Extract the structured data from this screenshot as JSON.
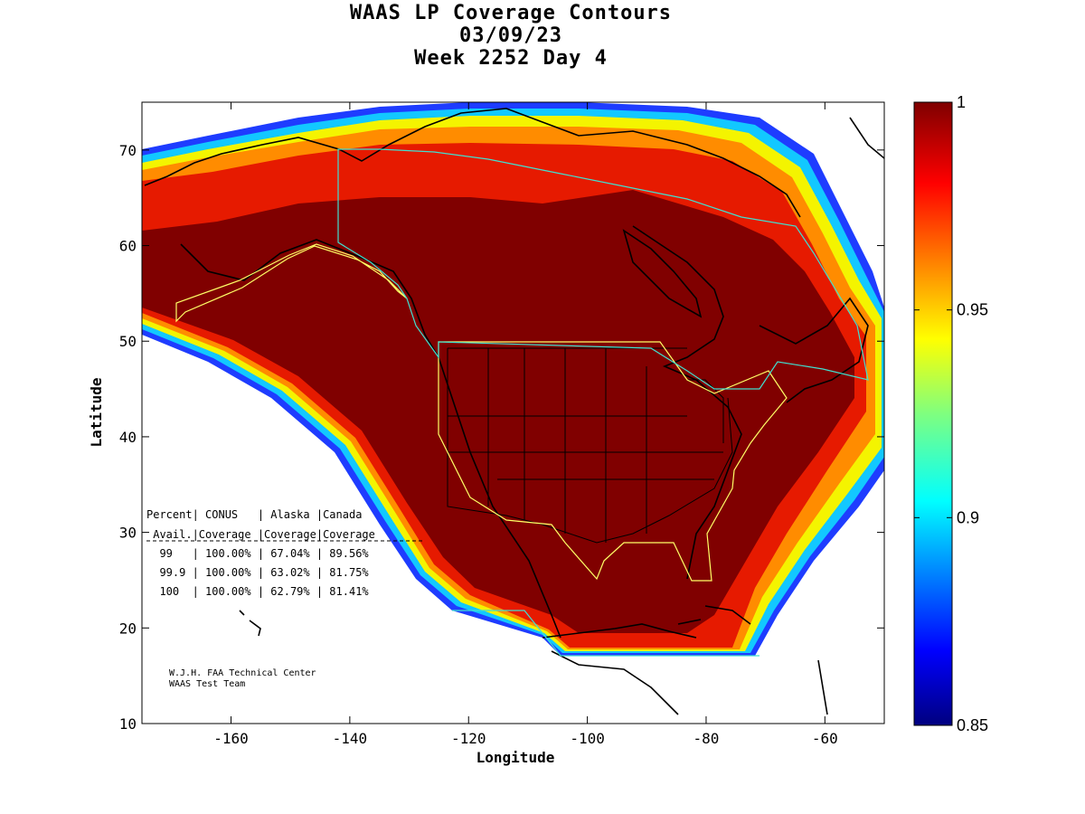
{
  "title": {
    "line1": "WAAS LP Coverage Contours",
    "line2": "03/09/23",
    "line3": "Week 2252 Day 4"
  },
  "axes": {
    "xlabel": "Longitude",
    "ylabel": "Latitude",
    "xticks": [
      "-160",
      "-140",
      "-120",
      "-100",
      "-80",
      "-60"
    ],
    "yticks": [
      "10",
      "20",
      "30",
      "40",
      "50",
      "60",
      "70"
    ],
    "xrange": [
      -175,
      -50
    ],
    "yrange": [
      10,
      75
    ]
  },
  "colorbar": {
    "labels": [
      "1",
      "0.95",
      "0.9",
      "0.85"
    ],
    "range": [
      0.85,
      1.0
    ],
    "colormap": "jet"
  },
  "coverage_table": {
    "header1": "Percent| CONUS   | Alaska |Canada",
    "header2": " Avail.|Coverage |Coverage|Coverage",
    "rows": [
      "  99   | 100.00% | 67.04% | 89.56%",
      "  99.9 | 100.00% | 63.02% | 81.75%",
      "  100  | 100.00% | 62.79% | 81.41%"
    ]
  },
  "chart_data": {
    "type": "heatmap",
    "title": "WAAS LP Coverage Contours",
    "xlabel": "Longitude",
    "ylabel": "Latitude",
    "xlim": [
      -175,
      -50
    ],
    "ylim": [
      10,
      75
    ],
    "colorbar_range": [
      0.85,
      1.0
    ],
    "table": [
      {
        "percent_avail": "99",
        "conus": "100.00%",
        "alaska": "67.04%",
        "canada": "89.56%"
      },
      {
        "percent_avail": "99.9",
        "conus": "100.00%",
        "alaska": "63.02%",
        "canada": "81.75%"
      },
      {
        "percent_avail": "100",
        "conus": "100.00%",
        "alaska": "62.79%",
        "canada": "81.41%"
      }
    ]
  },
  "credit": {
    "line1": "W.J.H. FAA Technical Center",
    "line2": "WAAS Test Team"
  },
  "colors": {
    "full_coverage": "#800000",
    "service_area_outline": "#ffff66",
    "border_outline": "#40e0d0"
  }
}
